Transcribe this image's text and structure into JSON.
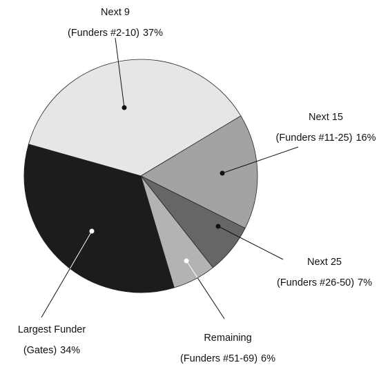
{
  "chart_data": {
    "type": "pie",
    "categories": [
      "Next 9",
      "Next 15",
      "Next 25",
      "Remaining",
      "Largest Funder"
    ],
    "sublabels": [
      "(Funders #2-10)",
      "(Funders #11-25)",
      "(Funders #26-50)",
      "(Funders #51-69)",
      "(Gates)"
    ],
    "values": [
      37,
      16,
      7,
      6,
      34
    ],
    "value_labels": [
      "37%",
      "16%",
      "7%",
      "6%",
      "34%"
    ],
    "colors": [
      "#e6e6e6",
      "#a3a3a3",
      "#666666",
      "#b3b3b3",
      "#1c1c1c"
    ]
  }
}
